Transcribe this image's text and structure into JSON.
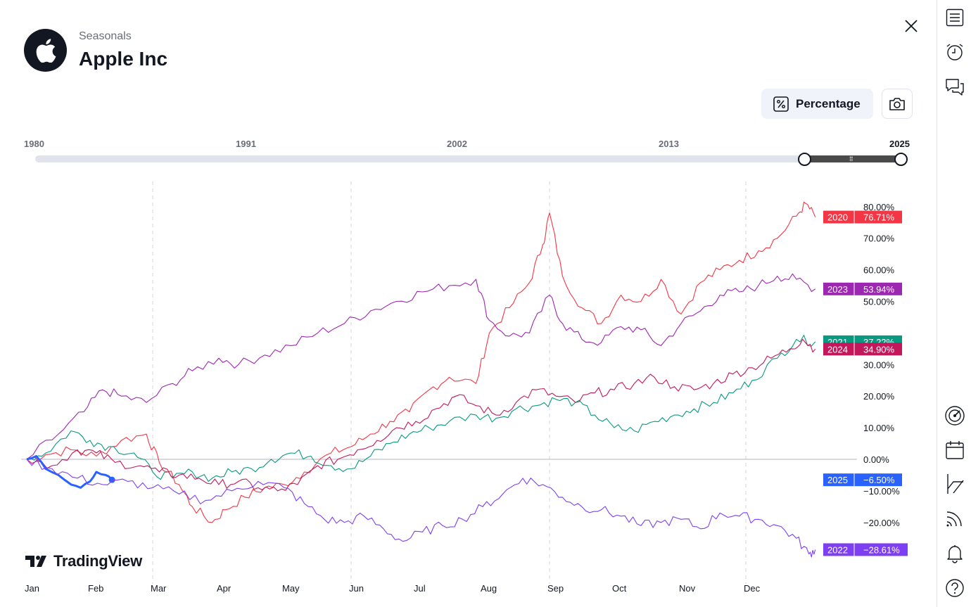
{
  "header": {
    "subtitle": "Seasonals",
    "title": "Apple Inc"
  },
  "controls": {
    "percentage_label": "Percentage"
  },
  "year_slider": {
    "labels": [
      "1980",
      "1991",
      "2002",
      "2013",
      "2025"
    ],
    "range_start": 2020,
    "range_end": 2025
  },
  "branding": {
    "text": "TradingView"
  },
  "toolbar_icons": [
    "watchlist-icon",
    "alert-clock-icon",
    "chat-icon",
    "gauge-icon",
    "calendar-icon",
    "line-tool-icon",
    "stream-icon",
    "bell-icon",
    "help-icon"
  ],
  "chart_data": {
    "type": "line",
    "x_months": [
      "Jan",
      "Feb",
      "Mar",
      "Apr",
      "May",
      "Jun",
      "Jul",
      "Aug",
      "Sep",
      "Oct",
      "Nov",
      "Dec"
    ],
    "y_ticks": [
      "80.00%",
      "70.00%",
      "60.00%",
      "50.00%",
      "30.00%",
      "20.00%",
      "10.00%",
      "0.00%",
      "−10.00%",
      "−20.00%"
    ],
    "ylim": [
      -30,
      85
    ],
    "grid": "vertical dashed at month starts, horizontal zero line",
    "series": [
      {
        "year": "2020",
        "color": "#f23645",
        "last_label": "76.71%",
        "last": 76.71,
        "points": [
          [
            0,
            0
          ],
          [
            0.3,
            1.5
          ],
          [
            0.7,
            3
          ],
          [
            1.1,
            1
          ],
          [
            1.5,
            6
          ],
          [
            1.9,
            8
          ],
          [
            2.1,
            -1
          ],
          [
            2.4,
            -8
          ],
          [
            2.6,
            -15
          ],
          [
            2.9,
            -20
          ],
          [
            3.1,
            -16
          ],
          [
            3.4,
            -12
          ],
          [
            3.7,
            -9
          ],
          [
            4.0,
            -8
          ],
          [
            4.3,
            -4
          ],
          [
            4.7,
            2
          ],
          [
            5.0,
            4
          ],
          [
            5.3,
            8
          ],
          [
            5.6,
            12
          ],
          [
            5.9,
            15
          ],
          [
            6.2,
            22
          ],
          [
            6.5,
            26
          ],
          [
            6.9,
            24
          ],
          [
            7.1,
            40
          ],
          [
            7.4,
            48
          ],
          [
            7.7,
            56
          ],
          [
            7.9,
            68
          ],
          [
            8.0,
            78
          ],
          [
            8.2,
            58
          ],
          [
            8.5,
            48
          ],
          [
            8.8,
            43
          ],
          [
            9.1,
            52
          ],
          [
            9.4,
            50
          ],
          [
            9.7,
            57
          ],
          [
            10.0,
            46
          ],
          [
            10.3,
            56
          ],
          [
            10.6,
            60
          ],
          [
            10.9,
            63
          ],
          [
            11.2,
            66
          ],
          [
            11.5,
            70
          ],
          [
            11.8,
            77
          ],
          [
            11.95,
            81
          ],
          [
            12.1,
            76.71
          ]
        ]
      },
      {
        "year": "2023",
        "color": "#9c27b0",
        "last_label": "53.94%",
        "last": 53.94,
        "points": [
          [
            0,
            0
          ],
          [
            0.5,
            8
          ],
          [
            0.9,
            15
          ],
          [
            1.2,
            22
          ],
          [
            1.5,
            20
          ],
          [
            1.9,
            18
          ],
          [
            2.3,
            24
          ],
          [
            2.6,
            28
          ],
          [
            3.0,
            32
          ],
          [
            3.3,
            30
          ],
          [
            3.7,
            33
          ],
          [
            4.1,
            36
          ],
          [
            4.5,
            40
          ],
          [
            4.9,
            43
          ],
          [
            5.3,
            47
          ],
          [
            5.7,
            50
          ],
          [
            6.1,
            53
          ],
          [
            6.5,
            55
          ],
          [
            6.9,
            57
          ],
          [
            7.1,
            44
          ],
          [
            7.4,
            39
          ],
          [
            7.7,
            40
          ],
          [
            8.0,
            52
          ],
          [
            8.2,
            43
          ],
          [
            8.5,
            38
          ],
          [
            8.8,
            37
          ],
          [
            9.1,
            42
          ],
          [
            9.4,
            41
          ],
          [
            9.7,
            36
          ],
          [
            10.0,
            43
          ],
          [
            10.3,
            47
          ],
          [
            10.6,
            52
          ],
          [
            10.9,
            53
          ],
          [
            11.2,
            55
          ],
          [
            11.5,
            58
          ],
          [
            11.8,
            57
          ],
          [
            12.1,
            53.94
          ]
        ]
      },
      {
        "year": "2021",
        "color": "#089981",
        "last_label": "37.22%",
        "last": 37.22,
        "points": [
          [
            0,
            0
          ],
          [
            0.3,
            2
          ],
          [
            0.7,
            9
          ],
          [
            1.0,
            6
          ],
          [
            1.3,
            4
          ],
          [
            1.7,
            2
          ],
          [
            2.0,
            -4
          ],
          [
            2.3,
            -6
          ],
          [
            2.6,
            -4
          ],
          [
            2.9,
            -6
          ],
          [
            3.2,
            -4
          ],
          [
            3.5,
            -3
          ],
          [
            3.8,
            0
          ],
          [
            4.1,
            2
          ],
          [
            4.4,
            1
          ],
          [
            4.7,
            -2
          ],
          [
            5.0,
            -3
          ],
          [
            5.3,
            1
          ],
          [
            5.6,
            5
          ],
          [
            5.9,
            8
          ],
          [
            6.2,
            10
          ],
          [
            6.5,
            12
          ],
          [
            6.9,
            14
          ],
          [
            7.2,
            13
          ],
          [
            7.5,
            16
          ],
          [
            7.8,
            17
          ],
          [
            8.1,
            19
          ],
          [
            8.4,
            18
          ],
          [
            8.7,
            14
          ],
          [
            9.0,
            10
          ],
          [
            9.3,
            9
          ],
          [
            9.6,
            12
          ],
          [
            9.9,
            14
          ],
          [
            10.2,
            16
          ],
          [
            10.5,
            18
          ],
          [
            10.8,
            21
          ],
          [
            11.1,
            25
          ],
          [
            11.5,
            32
          ],
          [
            11.8,
            38
          ],
          [
            12.1,
            37.22
          ]
        ]
      },
      {
        "year": "2024",
        "color": "#c2185b",
        "last_label": "34.90%",
        "last": 34.9,
        "points": [
          [
            0,
            0
          ],
          [
            0.4,
            -2
          ],
          [
            0.8,
            3
          ],
          [
            1.1,
            2
          ],
          [
            1.4,
            -1
          ],
          [
            1.8,
            -2
          ],
          [
            2.1,
            -4
          ],
          [
            2.4,
            -5
          ],
          [
            2.7,
            -6
          ],
          [
            3.0,
            -8
          ],
          [
            3.3,
            -7
          ],
          [
            3.6,
            -9
          ],
          [
            3.9,
            -10
          ],
          [
            4.2,
            -8
          ],
          [
            4.5,
            -2
          ],
          [
            4.8,
            0
          ],
          [
            5.1,
            3
          ],
          [
            5.4,
            6
          ],
          [
            5.7,
            10
          ],
          [
            6.0,
            12
          ],
          [
            6.3,
            16
          ],
          [
            6.6,
            20
          ],
          [
            6.9,
            17
          ],
          [
            7.2,
            14
          ],
          [
            7.5,
            18
          ],
          [
            7.8,
            22
          ],
          [
            8.1,
            20
          ],
          [
            8.4,
            18
          ],
          [
            8.7,
            21
          ],
          [
            9.0,
            22
          ],
          [
            9.3,
            24
          ],
          [
            9.6,
            26
          ],
          [
            9.9,
            23
          ],
          [
            10.2,
            22
          ],
          [
            10.5,
            24
          ],
          [
            10.8,
            27
          ],
          [
            11.1,
            29
          ],
          [
            11.4,
            32
          ],
          [
            11.7,
            35
          ],
          [
            11.9,
            38
          ],
          [
            12.1,
            34.9
          ]
        ]
      },
      {
        "year": "2025",
        "color": "#2962ff",
        "last_label": "−6.50%",
        "last": -6.5,
        "points": [
          [
            0,
            0
          ],
          [
            0.15,
            1
          ],
          [
            0.3,
            -3
          ],
          [
            0.5,
            -5
          ],
          [
            0.7,
            -8
          ],
          [
            0.85,
            -9
          ],
          [
            1.0,
            -7
          ],
          [
            1.1,
            -4
          ],
          [
            1.25,
            -5
          ],
          [
            1.35,
            -6.5
          ]
        ]
      },
      {
        "year": "2022",
        "color": "#7e3ff2",
        "last_label": "−28.61%",
        "last": -28.61,
        "points": [
          [
            0,
            0
          ],
          [
            0.4,
            -3
          ],
          [
            0.8,
            -6
          ],
          [
            1.2,
            -8
          ],
          [
            1.6,
            -7
          ],
          [
            2.0,
            -9
          ],
          [
            2.4,
            -11
          ],
          [
            2.8,
            -13
          ],
          [
            3.2,
            -10
          ],
          [
            3.6,
            -7
          ],
          [
            4.0,
            -9
          ],
          [
            4.3,
            -14
          ],
          [
            4.6,
            -19
          ],
          [
            4.9,
            -20
          ],
          [
            5.2,
            -18
          ],
          [
            5.5,
            -22
          ],
          [
            5.8,
            -26
          ],
          [
            6.1,
            -23
          ],
          [
            6.4,
            -21
          ],
          [
            6.7,
            -19
          ],
          [
            7.0,
            -15
          ],
          [
            7.3,
            -11
          ],
          [
            7.6,
            -6
          ],
          [
            7.9,
            -8
          ],
          [
            8.2,
            -12
          ],
          [
            8.5,
            -15
          ],
          [
            8.8,
            -16
          ],
          [
            9.1,
            -18
          ],
          [
            9.4,
            -21
          ],
          [
            9.7,
            -20
          ],
          [
            10.0,
            -19
          ],
          [
            10.3,
            -22
          ],
          [
            10.6,
            -17
          ],
          [
            10.9,
            -18
          ],
          [
            11.2,
            -19
          ],
          [
            11.5,
            -21
          ],
          [
            11.8,
            -25
          ],
          [
            12.0,
            -30
          ],
          [
            12.1,
            -28.61
          ]
        ]
      }
    ]
  }
}
